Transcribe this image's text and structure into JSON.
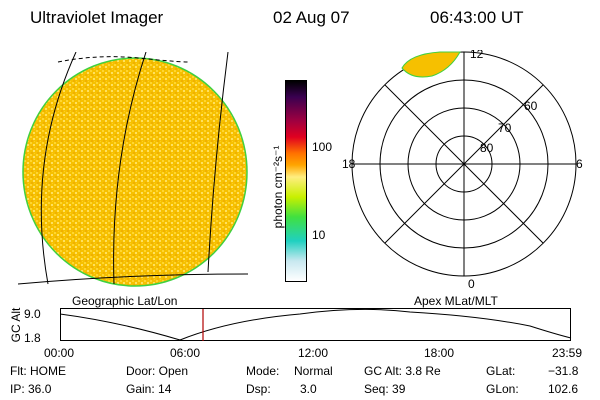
{
  "header": {
    "instrument": "Ultraviolet Imager",
    "date": "02 Aug 07",
    "time": "06:43:00 UT"
  },
  "left_panel": {
    "caption": "Geographic Lat/Lon"
  },
  "colorbar": {
    "unit_label": "photon cm⁻²s⁻¹",
    "ticks": [
      "100",
      "10"
    ],
    "scale": "log",
    "colors": [
      "#000000",
      "#3a0050",
      "#a00040",
      "#e00020",
      "#ff7000",
      "#ffa500",
      "#ffee80",
      "#c8f000",
      "#40e040",
      "#20d0c0",
      "#ffffff"
    ]
  },
  "right_panel": {
    "caption": "Apex MLat/MLT",
    "mlt_labels": [
      "12",
      "18",
      "6",
      "0"
    ],
    "mlat_labels": [
      "60",
      "70",
      "80"
    ]
  },
  "orbit_plot": {
    "ylabel": "GC Alt",
    "y_ticks": [
      "9.0",
      "1.8"
    ],
    "x_ticks": [
      "00:00",
      "06:00",
      "12:00",
      "18:00",
      "23:59"
    ],
    "ylim": [
      1.8,
      9.0
    ],
    "current_time_marker": "06:43"
  },
  "info": {
    "flt": "Flt: HOME",
    "ip": "IP: 36.0",
    "door": "Door: Open",
    "gain": "Gain: 14",
    "mode_label": "Mode:",
    "mode_value": "Normal",
    "dsp_label": "Dsp:",
    "dsp_value": "3.0",
    "gc_alt": "GC Alt: 3.8 Re",
    "seq": "Seq: 39",
    "glat_label": "GLat:",
    "glat_value": "−31.8",
    "glon_label": "GLon:",
    "glon_value": "102.6"
  },
  "colors": {
    "disk_fill": "#f6c000",
    "disk_rim": "#40d040",
    "marker": "#b00000"
  }
}
